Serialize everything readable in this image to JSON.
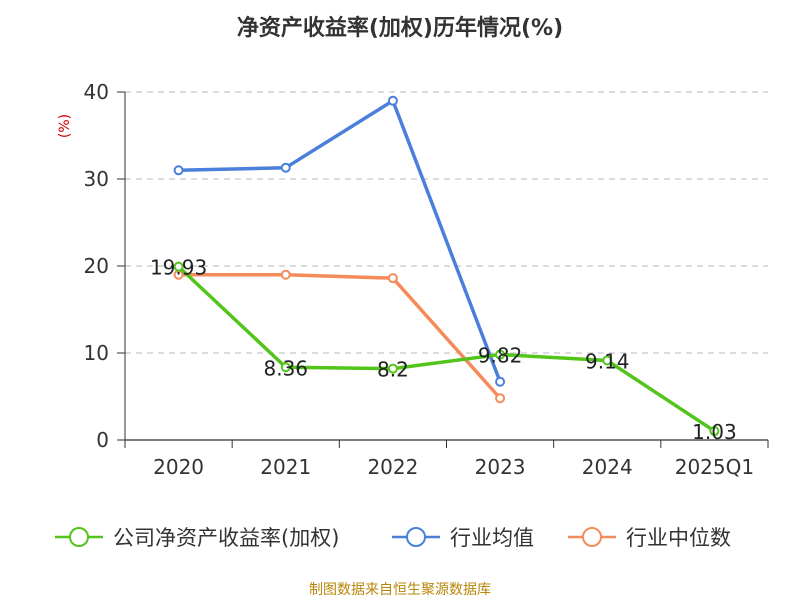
{
  "chart_data": {
    "type": "line",
    "title": "净资产收益率(加权)历年情况(%)",
    "ylabel": "(%)",
    "xlabel": "",
    "categories": [
      "2020",
      "2021",
      "2022",
      "2023",
      "2024",
      "2025Q1"
    ],
    "ylim": [
      0,
      40
    ],
    "yticks": [
      0,
      10,
      20,
      30,
      40
    ],
    "grid": true,
    "legend_position": "bottom",
    "series": [
      {
        "name": "公司净资产收益率(加权)",
        "color": "#52c41a",
        "values": [
          19.93,
          8.36,
          8.2,
          9.82,
          9.14,
          1.03
        ],
        "labels": [
          "19.93",
          "8.36",
          "8.2",
          "9.82",
          "9.14",
          "1.03"
        ]
      },
      {
        "name": "行业均值",
        "color": "#4a7fdb",
        "values": [
          31.0,
          31.3,
          39.0,
          6.7,
          null,
          null
        ]
      },
      {
        "name": "行业中位数",
        "color": "#f58b5a",
        "values": [
          19.0,
          19.0,
          18.6,
          4.8,
          null,
          null
        ]
      }
    ]
  },
  "source": "制图数据来自恒生聚源数据库",
  "colors": {
    "axis": "#333333",
    "grid": "#c8c8c8",
    "ylabel": "#cc0000",
    "source": "#b8860b"
  }
}
